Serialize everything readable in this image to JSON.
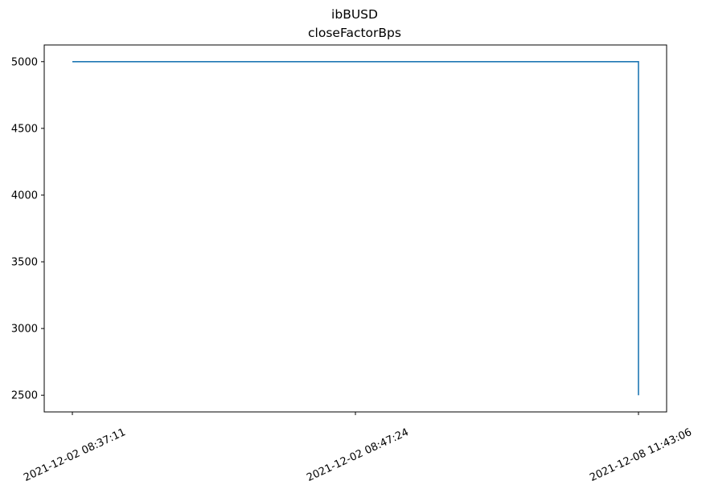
{
  "chart_data": {
    "type": "line",
    "title": "ibBUSD",
    "subtitle": "closeFactorBps",
    "xlabel": "",
    "ylabel": "",
    "categories": [
      "2021-12-02 08:37:11",
      "2021-12-02 08:47:24",
      "2021-12-08 11:43:06",
      "2021-12-08 11:43:06"
    ],
    "x_tick_labels": [
      "2021-12-02 08:37:11",
      "2021-12-02 08:47:24",
      "2021-12-08 11:43:06"
    ],
    "series": [
      {
        "values": [
          5000,
          5000,
          5000,
          2500
        ],
        "color": "#1f77b4"
      }
    ],
    "y_ticks": [
      2500,
      3000,
      3500,
      4000,
      4500,
      5000
    ],
    "ylim": [
      2375,
      5125
    ],
    "grid": false,
    "legend": "none"
  }
}
